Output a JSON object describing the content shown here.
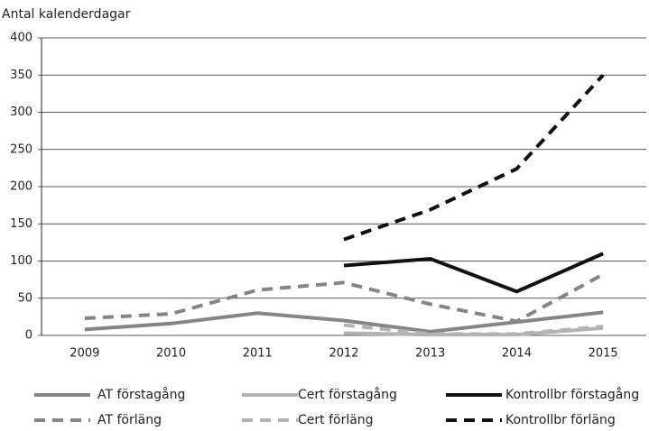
{
  "chart_data": {
    "type": "line",
    "y_label": "Antal kalenderdagar",
    "categories": [
      "2009",
      "2010",
      "2011",
      "2012",
      "2013",
      "2014",
      "2015"
    ],
    "series": [
      {
        "name": "AT förstagång",
        "color": "#858585",
        "dashed": false,
        "values": [
          8,
          16,
          30,
          20,
          5,
          18,
          31
        ]
      },
      {
        "name": "Cert förstagång",
        "color": "#b3b3b3",
        "dashed": false,
        "values": [
          null,
          null,
          null,
          3,
          1,
          1,
          10
        ]
      },
      {
        "name": "Kontrollbr förstagång",
        "color": "#111111",
        "dashed": false,
        "values": [
          null,
          null,
          null,
          94,
          103,
          59,
          110
        ]
      },
      {
        "name": "AT förläng",
        "color": "#858585",
        "dashed": true,
        "values": [
          23,
          29,
          61,
          71,
          42,
          19,
          82
        ]
      },
      {
        "name": "Cert förläng",
        "color": "#b3b3b3",
        "dashed": true,
        "values": [
          null,
          null,
          null,
          14,
          2,
          2,
          12
        ]
      },
      {
        "name": "Kontrollbr förläng",
        "color": "#111111",
        "dashed": true,
        "values": [
          null,
          null,
          null,
          129,
          169,
          224,
          350
        ]
      }
    ],
    "ylim": [
      0,
      400
    ],
    "yticks": [
      0,
      50,
      100,
      150,
      200,
      250,
      300,
      350,
      400
    ],
    "grid": true
  }
}
